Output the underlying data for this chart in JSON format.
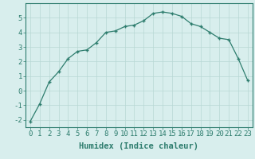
{
  "x": [
    0,
    1,
    2,
    3,
    4,
    5,
    6,
    7,
    8,
    9,
    10,
    11,
    12,
    13,
    14,
    15,
    16,
    17,
    18,
    19,
    20,
    21,
    22,
    23
  ],
  "y": [
    -2.1,
    -0.9,
    0.6,
    1.3,
    2.2,
    2.7,
    2.8,
    3.3,
    4.0,
    4.1,
    4.4,
    4.5,
    4.8,
    5.3,
    5.4,
    5.3,
    5.1,
    4.6,
    4.4,
    4.0,
    3.6,
    3.5,
    2.2,
    0.7
  ],
  "xlabel": "Humidex (Indice chaleur)",
  "xlim": [
    -0.5,
    23.5
  ],
  "ylim": [
    -2.5,
    6.0
  ],
  "yticks": [
    -2,
    -1,
    0,
    1,
    2,
    3,
    4,
    5
  ],
  "xticks": [
    0,
    1,
    2,
    3,
    4,
    5,
    6,
    7,
    8,
    9,
    10,
    11,
    12,
    13,
    14,
    15,
    16,
    17,
    18,
    19,
    20,
    21,
    22,
    23
  ],
  "line_color": "#2e7d6e",
  "marker": "+",
  "bg_color": "#d8eeed",
  "grid_color": "#b8d8d4",
  "tick_label_fontsize": 6.5,
  "xlabel_fontsize": 7.5
}
